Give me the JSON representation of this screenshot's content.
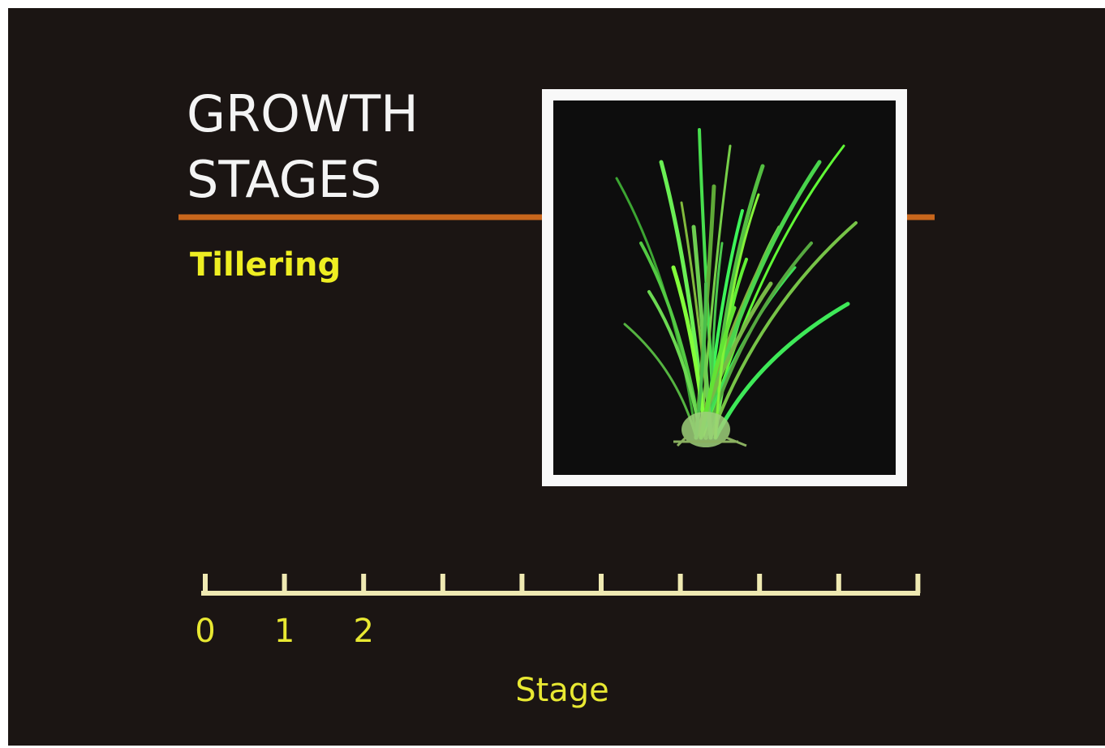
{
  "title_lines": [
    "GROWTH",
    "STAGES"
  ],
  "subtitle": "Tillering",
  "scale": {
    "ticks": [
      0,
      1,
      2
    ],
    "label": "Stage"
  }
}
